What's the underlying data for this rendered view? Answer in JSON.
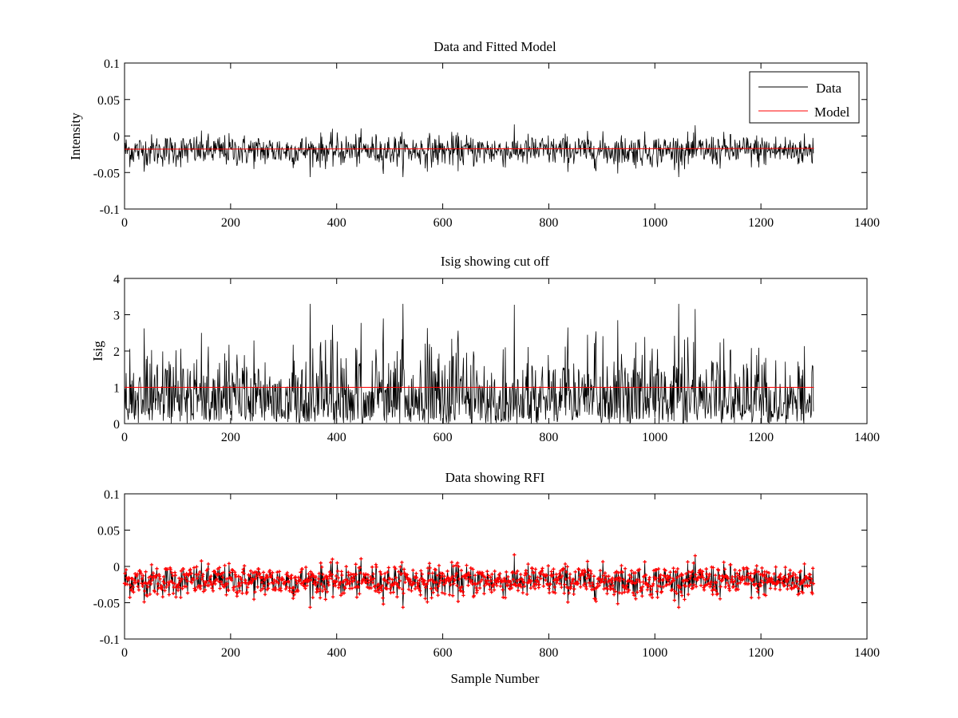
{
  "chart_data": [
    {
      "type": "line",
      "title": "Data and Fitted Model",
      "xlabel": "",
      "ylabel": "Intensity",
      "xlim": [
        0,
        1400
      ],
      "ylim": [
        -0.1,
        0.1
      ],
      "xticks": [
        0,
        200,
        400,
        600,
        800,
        1000,
        1200,
        1400
      ],
      "yticks": [
        -0.1,
        -0.05,
        0,
        0.05,
        0.1
      ],
      "ytick_labels": [
        "-0.1",
        "-0.05",
        "0",
        "0.05",
        "0.1"
      ],
      "grid": false,
      "legend_position": "top-right",
      "series": [
        {
          "name": "Data",
          "color": "#000000",
          "style": "noise",
          "x_range": [
            0,
            1300
          ],
          "mean": -0.02,
          "std": 0.011,
          "min_value": -0.054,
          "max_value": 0.018
        },
        {
          "name": "Model",
          "color": "#ff0000",
          "style": "line",
          "x": [
            0,
            1300
          ],
          "y": [
            -0.018,
            -0.017
          ]
        }
      ]
    },
    {
      "type": "line",
      "title": "Isig showing cut off",
      "xlabel": "",
      "ylabel": "Isig",
      "xlim": [
        0,
        1400
      ],
      "ylim": [
        0,
        4
      ],
      "xticks": [
        0,
        200,
        400,
        600,
        800,
        1000,
        1200,
        1400
      ],
      "yticks": [
        0,
        1,
        2,
        3,
        4
      ],
      "ytick_labels": [
        "0",
        "1",
        "2",
        "3",
        "4"
      ],
      "grid": false,
      "series": [
        {
          "color": "#000000",
          "style": "abs-noise",
          "x_range": [
            0,
            1300
          ],
          "scale": 0.85,
          "max_value": 3.35
        },
        {
          "color": "#ff0000",
          "style": "line",
          "x": [
            0,
            1300
          ],
          "y": [
            1,
            1
          ]
        }
      ]
    },
    {
      "type": "line",
      "title": "Data showing RFI",
      "xlabel": "Sample Number",
      "ylabel": "",
      "xlim": [
        0,
        1400
      ],
      "ylim": [
        -0.1,
        0.1
      ],
      "xticks": [
        0,
        200,
        400,
        600,
        800,
        1000,
        1200,
        1400
      ],
      "yticks": [
        -0.1,
        -0.05,
        0,
        0.05,
        0.1
      ],
      "ytick_labels": [
        "-0.1",
        "-0.05",
        "0",
        "0.05",
        "0.1"
      ],
      "grid": false,
      "series": [
        {
          "color": "#000000",
          "style": "noise",
          "x_range": [
            0,
            1300
          ],
          "mean": -0.02,
          "std": 0.011
        },
        {
          "color": "#ff0000",
          "style": "markers",
          "marker": "+",
          "note": "flagged samples overlaid on data"
        }
      ]
    }
  ]
}
